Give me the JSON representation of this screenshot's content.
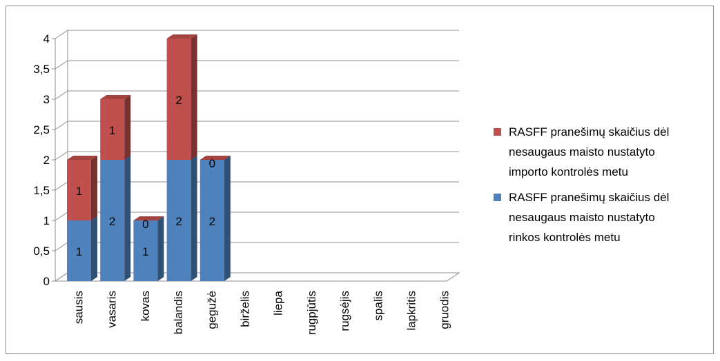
{
  "chart_data": {
    "type": "bar",
    "stacked": true,
    "three_d": true,
    "categories": [
      "sausis",
      "vasaris",
      "kovas",
      "balandis",
      "gegužė",
      "birželis",
      "liepa",
      "rugpjūtis",
      "rugsėjis",
      "spalis",
      "lapkritis",
      "gruodis"
    ],
    "series": [
      {
        "name": "RASFF pranešimų skaičius dėl nesaugaus maisto nustatyto rinkos kontrolės metu",
        "name_lines": [
          "RASFF pranešimų skaičius dėl",
          "nesaugaus maisto nustatyto",
          "rinkos kontrolės metu"
        ],
        "color": "#4f81bd",
        "values": [
          1,
          2,
          1,
          2,
          2,
          null,
          null,
          null,
          null,
          null,
          null,
          null
        ]
      },
      {
        "name": "RASFF pranešimų skaičius dėl nesaugaus maisto nustatyto importo kontrolės metu",
        "name_lines": [
          "RASFF pranešimų skaičius dėl",
          "nesaugaus maisto nustatyto",
          "importo kontrolės metu"
        ],
        "color": "#c0504d",
        "values": [
          1,
          1,
          0,
          2,
          0,
          null,
          null,
          null,
          null,
          null,
          null,
          null
        ]
      }
    ],
    "ylim": [
      0,
      4
    ],
    "yticks": [
      "0",
      "0,5",
      "1",
      "1,5",
      "2",
      "2,5",
      "3",
      "3,5",
      "4"
    ],
    "grid": true,
    "legend_position": "right",
    "legend_order": [
      1,
      0
    ]
  }
}
